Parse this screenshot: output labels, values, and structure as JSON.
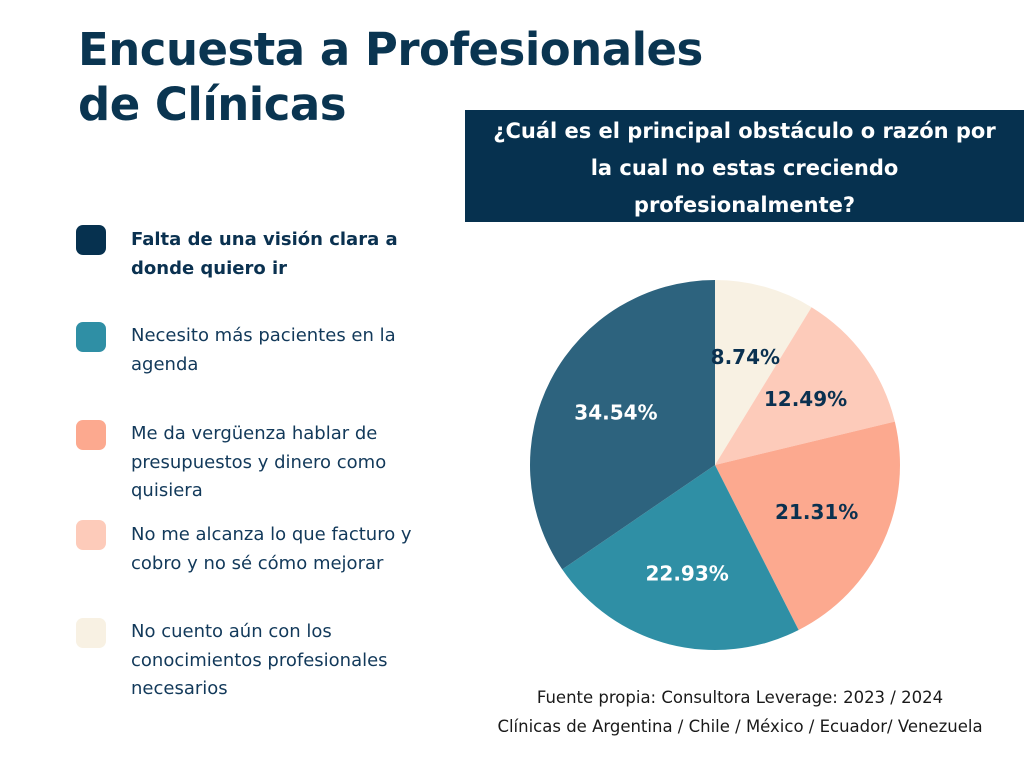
{
  "title": {
    "line1": "Encuesta a Profesionales",
    "line2": "de Clínicas"
  },
  "question": "¿Cuál es el principal obstáculo o razón por la cual no estas creciendo profesionalmente?",
  "legend": [
    {
      "label": "Falta de una visión clara a donde quiero ir",
      "color": "#06314f",
      "bold": true
    },
    {
      "label": "Necesito más pacientes en la agenda",
      "color": "#2f8fa5",
      "bold": false
    },
    {
      "label": "Me da vergüenza hablar de presupuestos y dinero como quisiera",
      "color": "#fca98f",
      "bold": false
    },
    {
      "label": "No me alcanza lo que facturo y cobro y no sé cómo mejorar",
      "color": "#fdcbba",
      "bold": false
    },
    {
      "label": "No cuento aún con los conocimientos profesionales necesarios",
      "color": "#f8f1e3",
      "bold": false
    }
  ],
  "chart_data": {
    "type": "pie",
    "start": "12 o'clock, clockwise",
    "slices": [
      {
        "label": "8.74%",
        "value": 8.74,
        "color": "#f8f1e3",
        "label_color": "#0a3150"
      },
      {
        "label": "12.49%",
        "value": 12.49,
        "color": "#fdcbba",
        "label_color": "#0a3150"
      },
      {
        "label": "21.31%",
        "value": 21.31,
        "color": "#fca98f",
        "label_color": "#0a3150"
      },
      {
        "label": "22.93%",
        "value": 22.93,
        "color": "#2f8fa5",
        "label_color": "#ffffff"
      },
      {
        "label": "34.54%",
        "value": 34.54,
        "color": "#2d637e",
        "label_color": "#ffffff"
      }
    ]
  },
  "source": {
    "line1": "Fuente propia: Consultora Leverage: 2023 / 2024",
    "line2": "Clínicas de Argentina / Chile / México / Ecuador/ Venezuela"
  }
}
